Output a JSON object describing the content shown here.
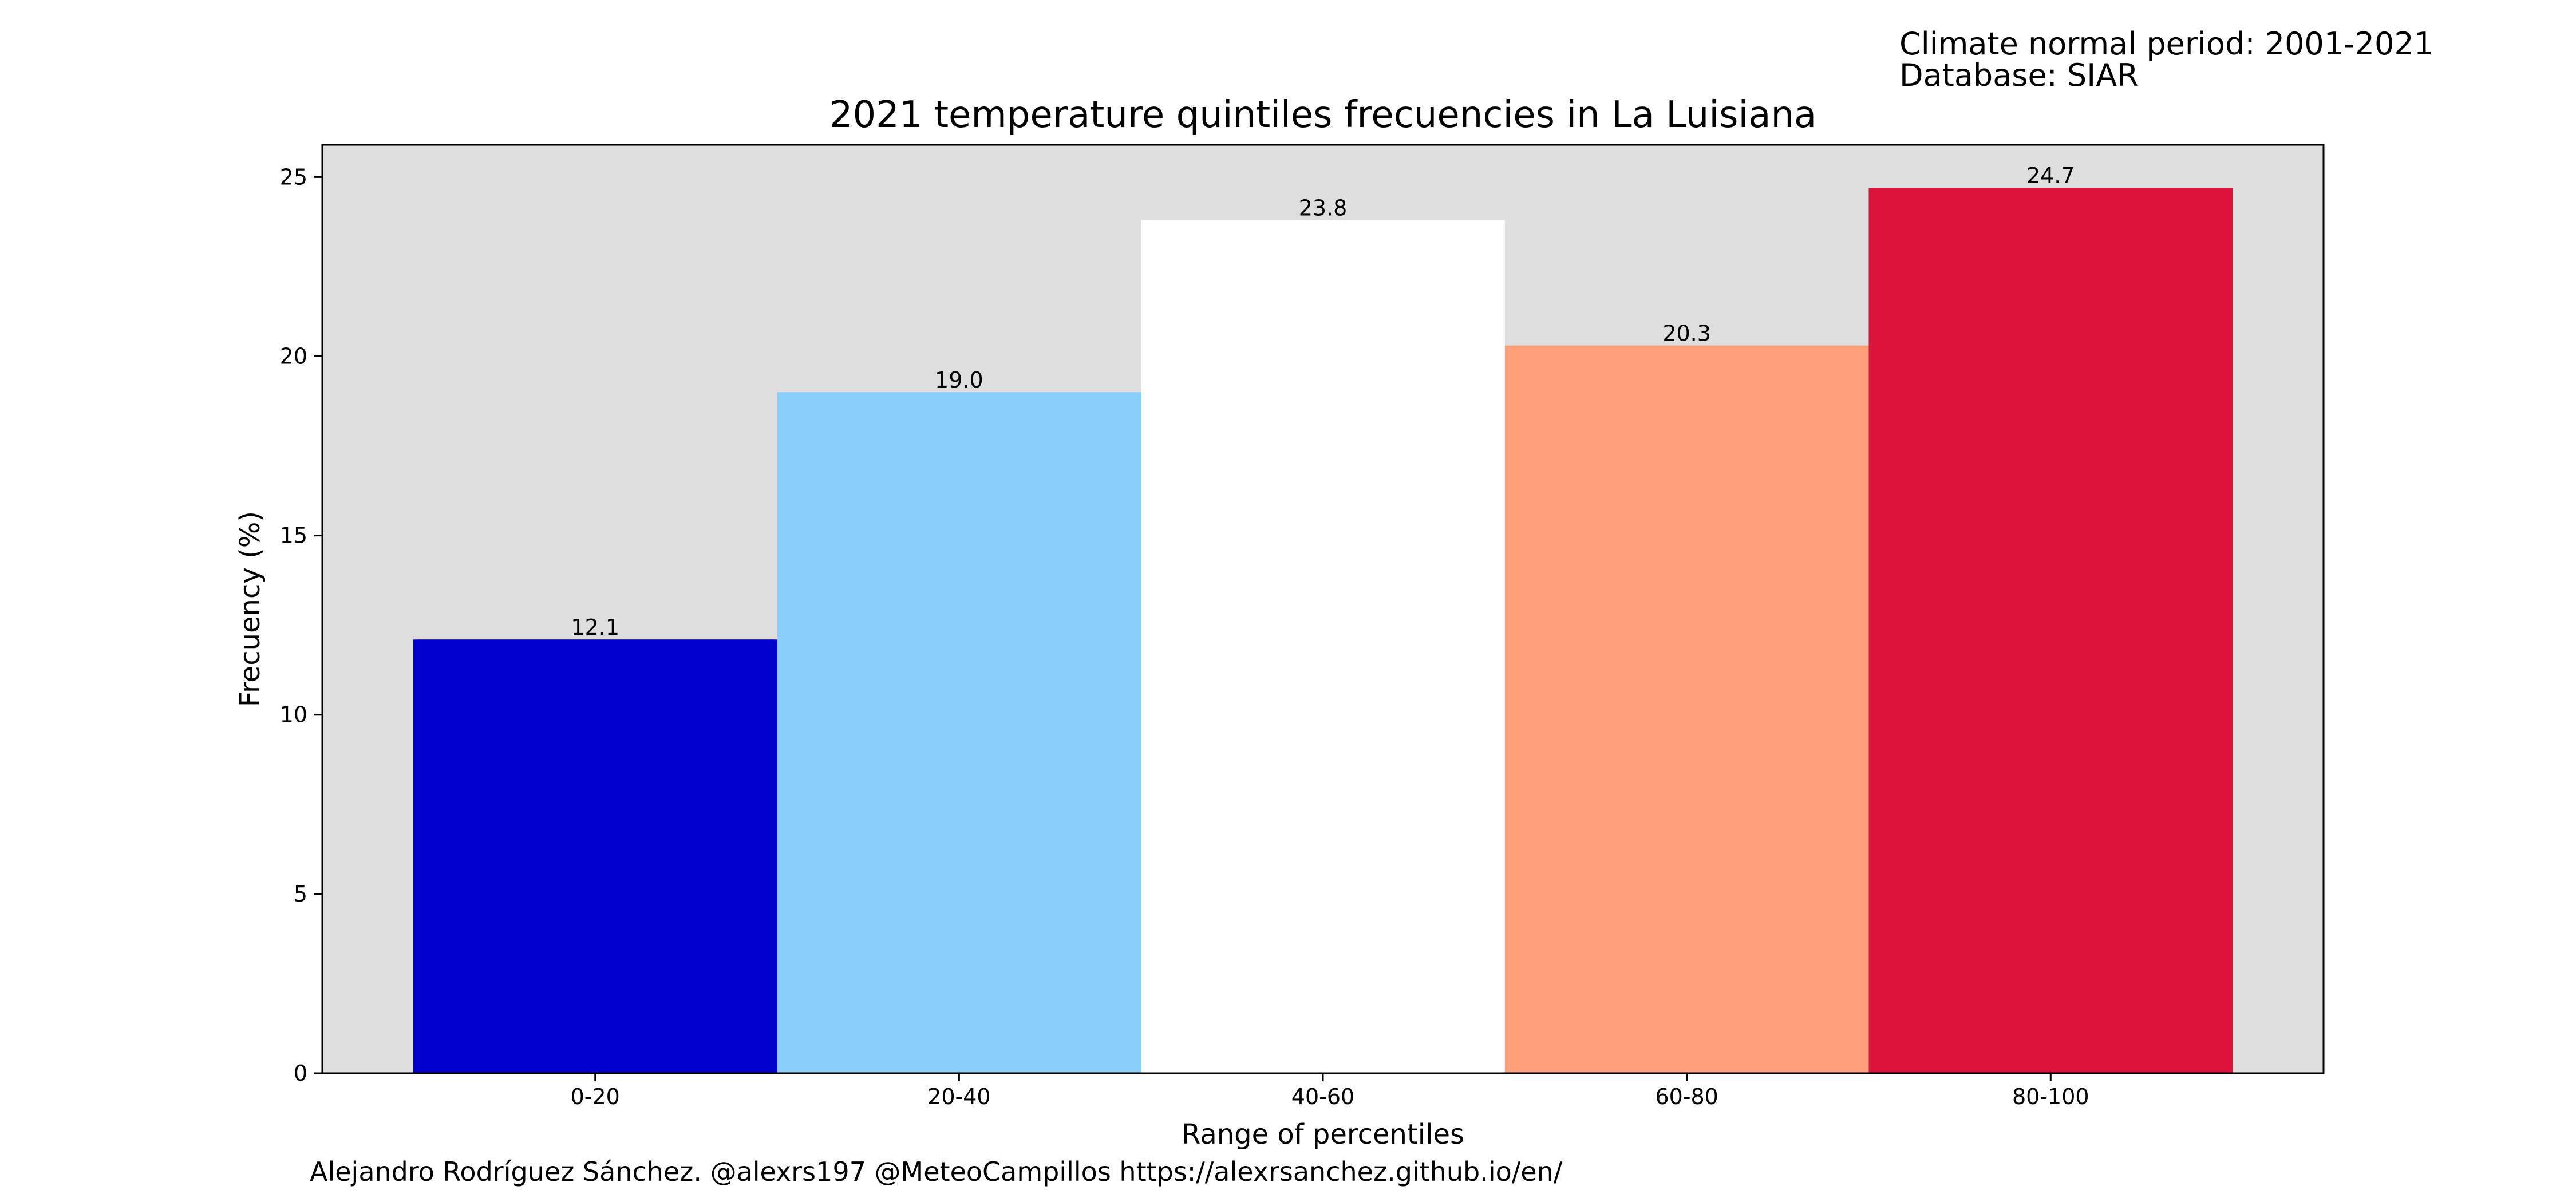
{
  "header": {
    "period_line": "Climate normal period: 2001-2021",
    "database_line": "Database: SIAR"
  },
  "footer": {
    "credit": "Alejandro Rodríguez Sánchez. @alexrs197 @MeteoCampillos   https://alexrsanchez.github.io/en/"
  },
  "chart_data": {
    "type": "bar",
    "title": "2021 temperature quintiles frecuencies in La Luisiana",
    "xlabel": "Range of percentiles",
    "ylabel": "Frecuency (%)",
    "categories": [
      "0-20",
      "20-40",
      "40-60",
      "60-80",
      "80-100"
    ],
    "values": [
      12.1,
      19.0,
      23.8,
      20.3,
      24.7
    ],
    "value_labels": [
      "12.1",
      "19.0",
      "23.8",
      "20.3",
      "24.7"
    ],
    "bar_colors": [
      "#0000cd",
      "#87cefa",
      "#ffffff",
      "#ffa07a",
      "#dc143c"
    ],
    "ylim": [
      0,
      25.9
    ],
    "yticks": [
      0,
      5,
      10,
      15,
      20,
      25
    ],
    "plot_background": "#dedede",
    "grid": false,
    "legend": "none"
  }
}
